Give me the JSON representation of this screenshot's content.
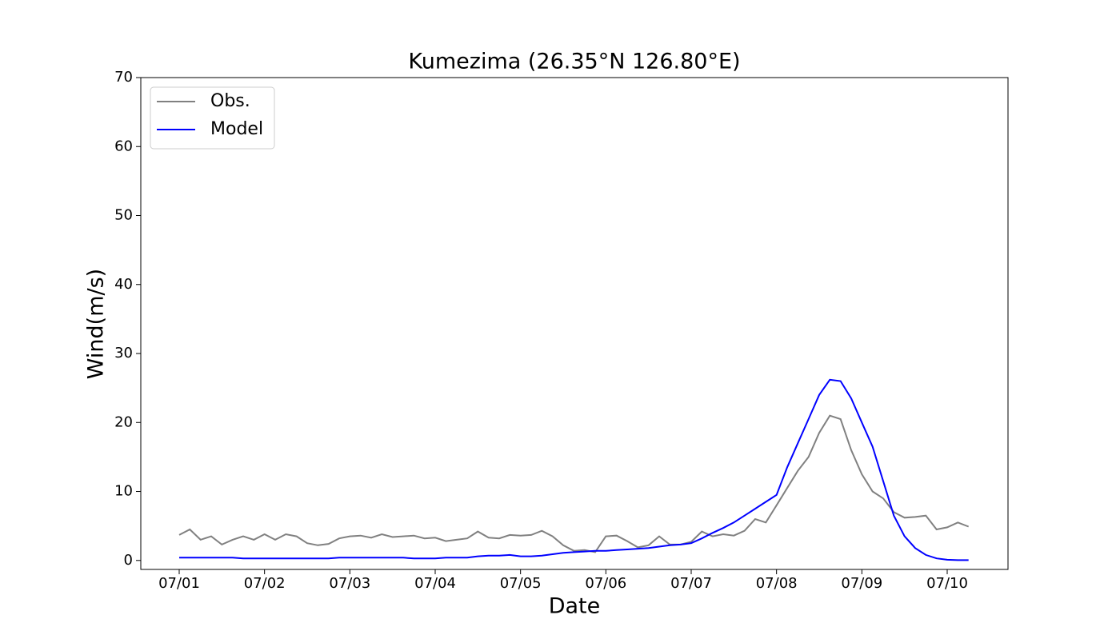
{
  "chart_data": {
    "type": "line",
    "title": "Kumezima (26.35°N 126.80°E)",
    "xlabel": "Date",
    "ylabel": "Wind(m/s)",
    "x": [
      "07/01",
      null,
      null,
      null,
      null,
      null,
      null,
      null,
      "07/02",
      null,
      null,
      null,
      null,
      null,
      null,
      null,
      "07/03",
      null,
      null,
      null,
      null,
      null,
      null,
      null,
      "07/04",
      null,
      null,
      null,
      null,
      null,
      null,
      null,
      "07/05",
      null,
      null,
      null,
      null,
      null,
      null,
      null,
      "07/06",
      null,
      null,
      null,
      null,
      null,
      null,
      null,
      "07/07",
      null,
      null,
      null,
      null,
      null,
      null,
      null,
      "07/08",
      null,
      null,
      null,
      null,
      null,
      null,
      null,
      "07/09",
      null,
      null,
      null,
      null,
      null,
      null,
      null,
      "07/10",
      null,
      null
    ],
    "series": [
      {
        "name": "Obs.",
        "color": "#808080",
        "values": [
          3.7,
          4.5,
          3.0,
          3.5,
          2.3,
          3.0,
          3.5,
          3.0,
          3.8,
          3.0,
          3.8,
          3.5,
          2.5,
          2.2,
          2.4,
          3.2,
          3.5,
          3.6,
          3.3,
          3.8,
          3.4,
          3.5,
          3.6,
          3.2,
          3.3,
          2.8,
          3.0,
          3.2,
          4.2,
          3.3,
          3.2,
          3.7,
          3.6,
          3.7,
          4.3,
          3.5,
          2.2,
          1.4,
          1.5,
          1.2,
          3.5,
          3.6,
          2.8,
          1.9,
          2.2,
          3.5,
          2.3,
          2.3,
          2.7,
          4.2,
          3.5,
          3.8,
          3.6,
          4.3,
          6.0,
          5.5,
          8.0,
          10.5,
          13.0,
          15.0,
          18.5,
          21.0,
          20.5,
          16.0,
          12.5,
          10.0,
          9.0,
          7.0,
          6.2,
          6.3,
          6.5,
          4.5,
          4.8,
          5.5,
          4.9
        ]
      },
      {
        "name": "Model",
        "color": "#0000ff",
        "values": [
          0.4,
          0.4,
          0.4,
          0.4,
          0.4,
          0.4,
          0.3,
          0.3,
          0.3,
          0.3,
          0.3,
          0.3,
          0.3,
          0.3,
          0.3,
          0.4,
          0.4,
          0.4,
          0.4,
          0.4,
          0.4,
          0.4,
          0.3,
          0.3,
          0.3,
          0.4,
          0.4,
          0.4,
          0.6,
          0.7,
          0.7,
          0.8,
          0.6,
          0.6,
          0.7,
          0.9,
          1.1,
          1.2,
          1.3,
          1.4,
          1.4,
          1.5,
          1.6,
          1.7,
          1.8,
          2.0,
          2.2,
          2.3,
          2.5,
          3.2,
          4.0,
          4.7,
          5.5,
          6.5,
          7.5,
          8.5,
          9.5,
          13.5,
          17,
          20.5,
          24,
          26.2,
          26,
          23.5,
          20,
          16.5,
          11.5,
          6.5,
          3.5,
          1.8,
          0.8,
          0.3,
          0.1,
          0.05,
          0.05
        ]
      }
    ],
    "ylim": [
      -1.3,
      70
    ],
    "yticks": [
      0,
      10,
      20,
      30,
      40,
      50,
      60,
      70
    ],
    "legend": "upper left"
  }
}
